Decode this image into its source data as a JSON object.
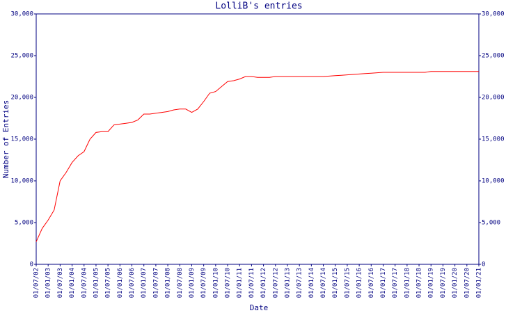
{
  "chart_data": {
    "type": "line",
    "title": "LolliB's entries",
    "x_label": "Date",
    "y_label": "Number of Entries",
    "categories": [
      "01/07/02",
      null,
      "01/01/03",
      null,
      "01/07/03",
      null,
      "01/01/04",
      null,
      "01/07/04",
      null,
      "01/01/05",
      null,
      "01/07/05",
      null,
      "01/01/06",
      null,
      "01/07/06",
      null,
      "01/01/07",
      null,
      "01/07/07",
      null,
      "01/01/08",
      null,
      "01/07/08",
      null,
      "01/01/09",
      null,
      "01/07/09",
      null,
      "01/01/10",
      null,
      "01/07/10",
      null,
      "01/01/11",
      null,
      "01/07/11",
      null,
      "01/01/12",
      null,
      "01/07/12",
      null,
      "01/01/13",
      null,
      "01/07/13",
      null,
      "01/01/14",
      null,
      "01/07/14",
      null,
      "01/01/15",
      null,
      "01/07/15",
      null,
      "01/01/16",
      null,
      "01/07/16",
      null,
      "01/01/17",
      null,
      "01/07/17",
      null,
      "01/01/18",
      null,
      "01/07/18",
      null,
      "01/01/19",
      null,
      "01/07/19",
      null,
      "01/01/20",
      null,
      "01/07/20",
      null,
      "01/01/21"
    ],
    "values": [
      2700,
      4300,
      5300,
      6500,
      10000,
      11000,
      12200,
      13000,
      13500,
      15000,
      15800,
      15900,
      15900,
      16700,
      16800,
      16900,
      17000,
      17300,
      18000,
      18000,
      18100,
      18200,
      18300,
      18500,
      18600,
      18600,
      18200,
      18600,
      19500,
      20500,
      20700,
      21300,
      21900,
      22000,
      22200,
      22500,
      22500,
      22400,
      22400,
      22400,
      22500,
      22500,
      22500,
      22500,
      22500,
      22500,
      22500,
      22500,
      22500,
      22550,
      22600,
      22650,
      22700,
      22750,
      22800,
      22850,
      22900,
      22950,
      23000,
      23000,
      23000,
      23000,
      23000,
      23000,
      23000,
      23000,
      23100,
      23100,
      23100,
      23100,
      23100,
      23100,
      23100,
      23100,
      23100
    ],
    "color": "#ff0000",
    "ylim": [
      0,
      30000
    ],
    "yticks": [
      0,
      {
        "value": 5000,
        "label": "5,000"
      },
      {
        "value": 10000,
        "label": "10,000"
      },
      {
        "value": 15000,
        "label": "15,000"
      },
      {
        "value": 20000,
        "label": "20,000"
      },
      {
        "value": 25000,
        "label": "25,000"
      },
      {
        "value": 30000,
        "label": "30,000"
      }
    ]
  }
}
